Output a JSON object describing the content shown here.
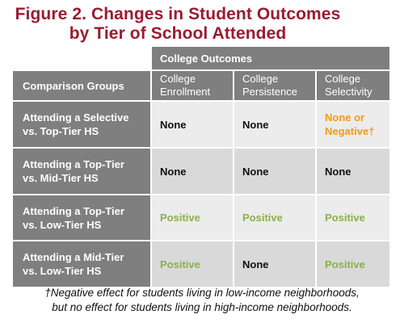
{
  "title": {
    "line1": "Figure 2. Changes in Student Outcomes",
    "line2": "by Tier of School Attended"
  },
  "table": {
    "group_header": "College Outcomes",
    "comparison_header": "Comparison Groups",
    "columns": [
      {
        "line1": "College",
        "line2": "Enrollment"
      },
      {
        "line1": "College",
        "line2": "Persistence"
      },
      {
        "line1": "College",
        "line2": "Selectivity"
      }
    ],
    "rows": [
      {
        "label_line1": "Attending a Selective",
        "label_line2": "vs. Top-Tier HS",
        "cells": [
          {
            "line1": "None",
            "line2": ""
          },
          {
            "line1": "None",
            "line2": ""
          },
          {
            "line1": "None or",
            "line2": "Negative†"
          }
        ]
      },
      {
        "label_line1": "Attending a Top-Tier",
        "label_line2": "vs. Mid-Tier HS",
        "cells": [
          {
            "line1": "None",
            "line2": ""
          },
          {
            "line1": "None",
            "line2": ""
          },
          {
            "line1": "None",
            "line2": ""
          }
        ]
      },
      {
        "label_line1": "Attending a Top-Tier",
        "label_line2": "vs. Low-Tier HS",
        "cells": [
          {
            "line1": "Positive",
            "line2": ""
          },
          {
            "line1": "Positive",
            "line2": ""
          },
          {
            "line1": "Positive",
            "line2": ""
          }
        ]
      },
      {
        "label_line1": "Attending a Mid-Tier",
        "label_line2": "vs. Low-Tier HS",
        "cells": [
          {
            "line1": "Positive",
            "line2": ""
          },
          {
            "line1": "None",
            "line2": ""
          },
          {
            "line1": "Positive",
            "line2": ""
          }
        ]
      }
    ]
  },
  "footnote": {
    "line1": "†Negative effect for students living in low-income neighborhoods,",
    "line2": "but no effect for students living in high-income neighborhoods."
  },
  "colors": {
    "title": "#9b1b30",
    "header_bg": "#7f7f7f",
    "positive": "#8bb04a",
    "negative": "#f39c12",
    "row_light": "#ececec",
    "row_mid": "#d9d9d9"
  }
}
